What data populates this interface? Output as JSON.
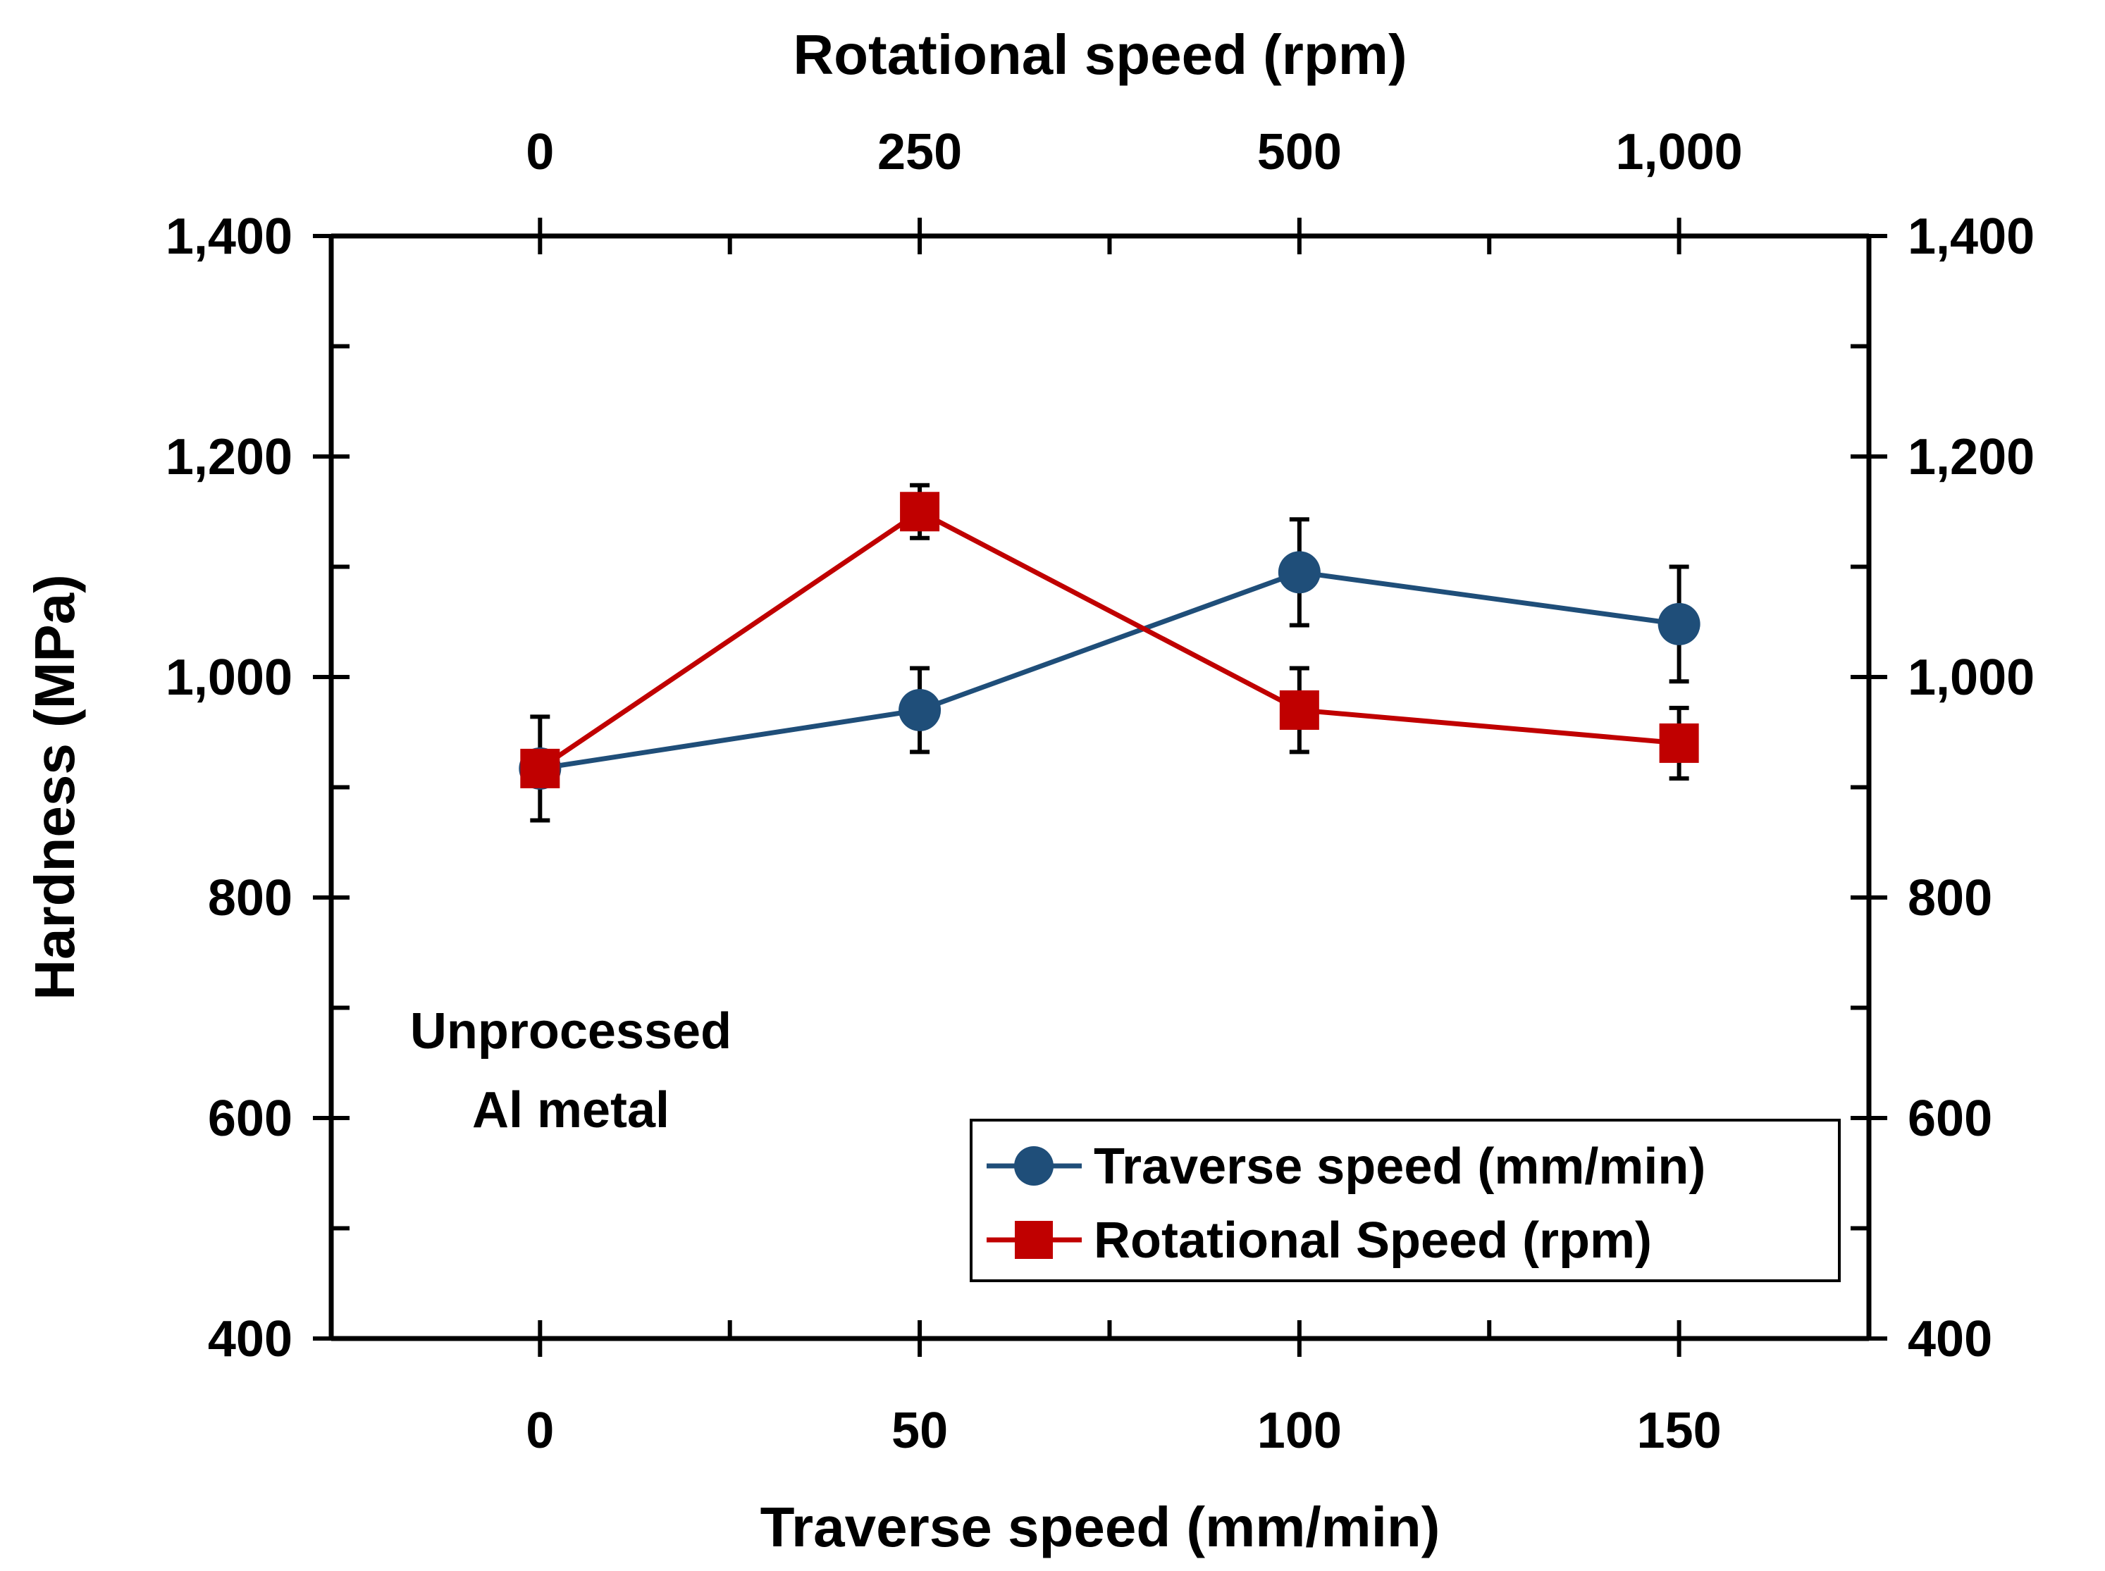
{
  "chart_data": {
    "type": "line",
    "xlabel": "Traverse speed (mm/min)",
    "x2label": "Rotational speed (rpm)",
    "ylabel": "Hardness (MPa)",
    "xlim": [
      -27.5,
      175
    ],
    "ylim": [
      400,
      1400
    ],
    "x_ticks": [
      0,
      50,
      100,
      150
    ],
    "x_tick_labels": [
      "0",
      "50",
      "100",
      "150"
    ],
    "x2_ticks": [
      0,
      50,
      100,
      150
    ],
    "x2_tick_labels": [
      "0",
      "250",
      "500",
      "1,000"
    ],
    "y_ticks": [
      400,
      600,
      800,
      1000,
      1200,
      1400
    ],
    "y_tick_labels": [
      "400",
      "600",
      "800",
      "1,000",
      "1,200",
      "1,400"
    ],
    "grid": false,
    "legend_position": "bottom-right",
    "annotation": [
      "Unprocessed",
      "Al metal"
    ],
    "series": [
      {
        "name": "Traverse speed (mm/min)",
        "color": "#1f4e79",
        "marker": "circle",
        "x": [
          0,
          50,
          100,
          150
        ],
        "values": [
          917,
          970,
          1095,
          1048
        ],
        "err": [
          47,
          38,
          48,
          52
        ]
      },
      {
        "name": "Rotational Speed (rpm)",
        "color": "#c00000",
        "marker": "square",
        "x": [
          0,
          50,
          100,
          150
        ],
        "values": [
          917,
          1150,
          970,
          940
        ],
        "err": [
          0,
          24,
          38,
          32
        ]
      }
    ]
  }
}
